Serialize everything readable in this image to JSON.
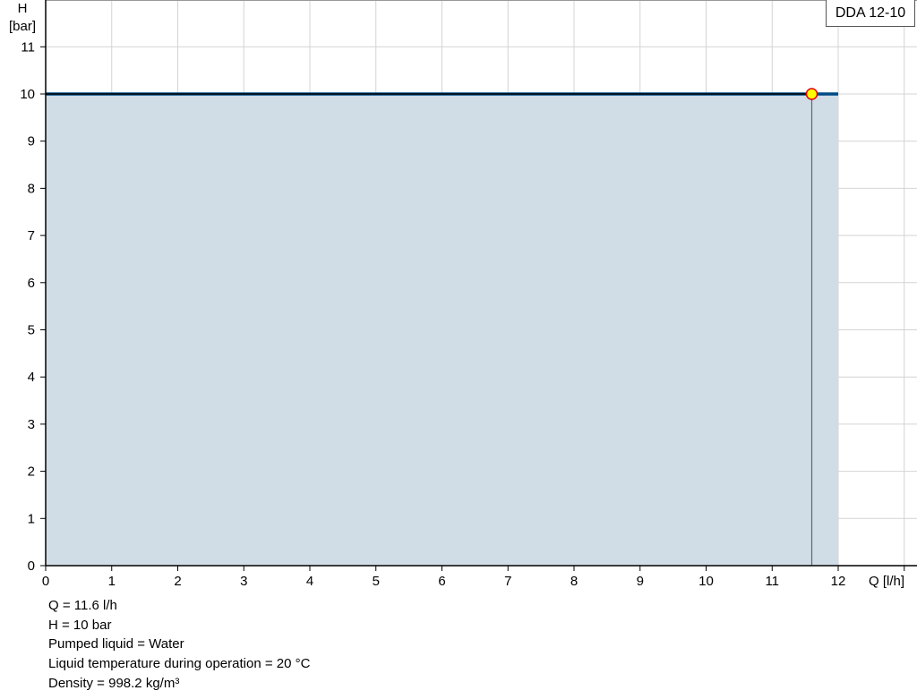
{
  "chart_data": {
    "type": "area",
    "legend": "DDA 12-10",
    "legend_position": "top-right",
    "xlabel": "Q [l/h]",
    "ylabel_line1": "H",
    "ylabel_line2": "[bar]",
    "xlim": [
      0,
      13.2
    ],
    "ylim": [
      0,
      12
    ],
    "x_ticks": [
      0,
      1,
      2,
      3,
      4,
      5,
      6,
      7,
      8,
      9,
      10,
      11,
      12,
      13
    ],
    "x_tick_labels": [
      "0",
      "1",
      "2",
      "3",
      "4",
      "5",
      "6",
      "7",
      "8",
      "9",
      "10",
      "11",
      "12"
    ],
    "y_ticks": [
      0,
      1,
      2,
      3,
      4,
      5,
      6,
      7,
      8,
      9,
      10,
      11
    ],
    "grid": true,
    "series": [
      {
        "type": "line",
        "x": [
          0,
          12
        ],
        "y": [
          10,
          10
        ],
        "color": "#004b87",
        "fill": "#d0dce6"
      }
    ],
    "operating_point": {
      "x": 11.6,
      "y": 10,
      "fill": "#ffff00",
      "stroke": "#e00000"
    }
  },
  "info": {
    "q": "Q = 11.6 l/h",
    "h": "H = 10 bar",
    "liquid": "Pumped liquid = Water",
    "temperature": "Liquid temperature during operation = 20 °C",
    "density": "Density = 998.2 kg/m³"
  }
}
